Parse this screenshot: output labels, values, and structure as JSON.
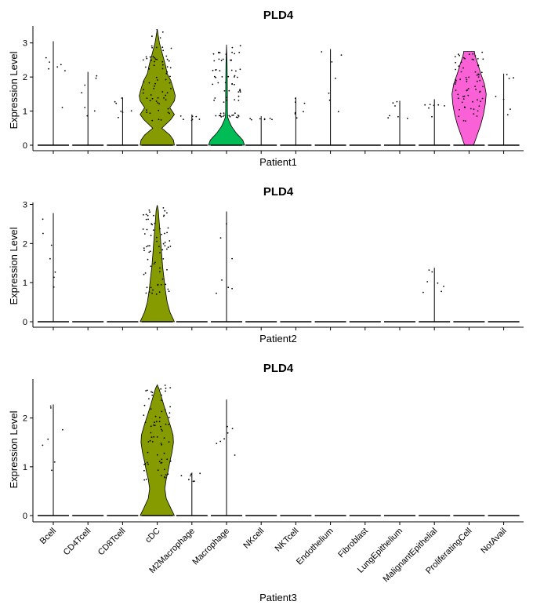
{
  "chart_data": [
    {
      "type": "violin",
      "title": "PLD4",
      "ylabel": "Expression Level",
      "xlabel": "Patient1",
      "ylim": [
        0,
        3.5
      ],
      "yticks": [
        0,
        1,
        2,
        3
      ],
      "categories": [
        "Bcell",
        "CD4Tcell",
        "CD8Tcell",
        "cDC",
        "M2Macrophage",
        "Macrophage",
        "NKcell",
        "NKTcell",
        "Endothelium",
        "Fibroblast",
        "LungEpithelium",
        "MalignantEpithelial",
        "ProliferatingCell",
        "NotAvail"
      ],
      "max_values": [
        3.05,
        2.15,
        1.4,
        3.4,
        0.9,
        2.95,
        0.85,
        1.4,
        2.82,
        0,
        1.3,
        1.35,
        2.75,
        2.1
      ],
      "colors": [
        "#F8766D",
        "#E38900",
        "#C49A00",
        "#869B00",
        "#53B400",
        "#00BC56",
        "#00C094",
        "#00BFC4",
        "#00B6EB",
        "#06A4FF",
        "#A58AFF",
        "#DF70F8",
        "#FB61D7",
        "#FF66A8"
      ],
      "violins": [
        {
          "category": "cDC",
          "color": "#869B00",
          "max": 3.4,
          "profile": [
            [
              0,
              0.95
            ],
            [
              0.15,
              0.9
            ],
            [
              0.3,
              0.7
            ],
            [
              0.5,
              0.25
            ],
            [
              0.75,
              0.75
            ],
            [
              0.9,
              0.95
            ],
            [
              1.1,
              0.7
            ],
            [
              1.3,
              0.95
            ],
            [
              1.45,
              1.0
            ],
            [
              1.65,
              0.9
            ],
            [
              1.9,
              0.75
            ],
            [
              2.1,
              0.55
            ],
            [
              2.35,
              0.45
            ],
            [
              2.55,
              0.35
            ],
            [
              2.8,
              0.22
            ],
            [
              3.0,
              0.12
            ],
            [
              3.2,
              0.06
            ],
            [
              3.4,
              0.0
            ]
          ]
        },
        {
          "category": "Macrophage",
          "color": "#00BC56",
          "max": 2.95,
          "profile": [
            [
              0,
              1.0
            ],
            [
              0.15,
              0.9
            ],
            [
              0.35,
              0.55
            ],
            [
              0.55,
              0.28
            ],
            [
              0.7,
              0.15
            ],
            [
              0.8,
              0.08
            ],
            [
              0.85,
              0.06
            ],
            [
              1.0,
              0.05
            ],
            [
              1.5,
              0.05
            ],
            [
              2.0,
              0.04
            ],
            [
              2.4,
              0.03
            ],
            [
              2.95,
              0.0
            ]
          ]
        },
        {
          "category": "ProliferatingCell",
          "color": "#FB61D7",
          "max": 2.75,
          "profile": [
            [
              0,
              0.25
            ],
            [
              0.3,
              0.45
            ],
            [
              0.6,
              0.65
            ],
            [
              0.9,
              0.8
            ],
            [
              1.2,
              0.9
            ],
            [
              1.5,
              0.95
            ],
            [
              1.8,
              0.85
            ],
            [
              2.1,
              0.65
            ],
            [
              2.4,
              0.48
            ],
            [
              2.6,
              0.35
            ],
            [
              2.72,
              0.3
            ],
            [
              2.75,
              0.3
            ]
          ]
        }
      ]
    },
    {
      "type": "violin",
      "title": "PLD4",
      "ylabel": "Expression Level",
      "xlabel": "Patient2",
      "ylim": [
        0,
        3.05
      ],
      "yticks": [
        0,
        1,
        2,
        3
      ],
      "categories": [
        "Bcell",
        "CD4Tcell",
        "CD8Tcell",
        "cDC",
        "M2Macrophage",
        "Macrophage",
        "NKcell",
        "NKTcell",
        "Endothelium",
        "Fibroblast",
        "LungEpithelium",
        "MalignantEpithelial",
        "ProliferatingCell",
        "NotAvail"
      ],
      "max_values": [
        2.78,
        0,
        0,
        2.98,
        0,
        2.82,
        0,
        0,
        0,
        0,
        0,
        1.38,
        0,
        0
      ],
      "violins": [
        {
          "category": "cDC",
          "color": "#869B00",
          "max": 2.98,
          "profile": [
            [
              0,
              0.95
            ],
            [
              0.1,
              0.85
            ],
            [
              0.25,
              0.7
            ],
            [
              0.5,
              0.55
            ],
            [
              0.8,
              0.45
            ],
            [
              1.1,
              0.38
            ],
            [
              1.4,
              0.3
            ],
            [
              1.7,
              0.25
            ],
            [
              2.0,
              0.2
            ],
            [
              2.3,
              0.15
            ],
            [
              2.6,
              0.1
            ],
            [
              2.85,
              0.06
            ],
            [
              2.98,
              0.0
            ]
          ]
        }
      ]
    },
    {
      "type": "violin",
      "title": "PLD4",
      "ylabel": "Expression Level",
      "xlabel": "Patient3",
      "ylim": [
        0,
        2.8
      ],
      "yticks": [
        0,
        1,
        2
      ],
      "categories": [
        "Bcell",
        "CD4Tcell",
        "CD8Tcell",
        "cDC",
        "M2Macrophage",
        "Macrophage",
        "NKcell",
        "NKTcell",
        "Endothelium",
        "Fibroblast",
        "LungEpithelium",
        "MalignantEpithelial",
        "ProliferatingCell",
        "NotAvail"
      ],
      "max_values": [
        2.28,
        0,
        0,
        2.68,
        0.88,
        2.38,
        0,
        0,
        0,
        0,
        0,
        0,
        0,
        0
      ],
      "violins": [
        {
          "category": "cDC",
          "color": "#869B00",
          "max": 2.68,
          "profile": [
            [
              0,
              0.95
            ],
            [
              0.15,
              0.75
            ],
            [
              0.35,
              0.5
            ],
            [
              0.55,
              0.42
            ],
            [
              0.75,
              0.5
            ],
            [
              0.9,
              0.6
            ],
            [
              1.1,
              0.7
            ],
            [
              1.3,
              0.82
            ],
            [
              1.5,
              0.9
            ],
            [
              1.65,
              0.88
            ],
            [
              1.85,
              0.72
            ],
            [
              2.05,
              0.55
            ],
            [
              2.25,
              0.38
            ],
            [
              2.45,
              0.22
            ],
            [
              2.6,
              0.1
            ],
            [
              2.68,
              0.0
            ]
          ]
        }
      ]
    }
  ]
}
